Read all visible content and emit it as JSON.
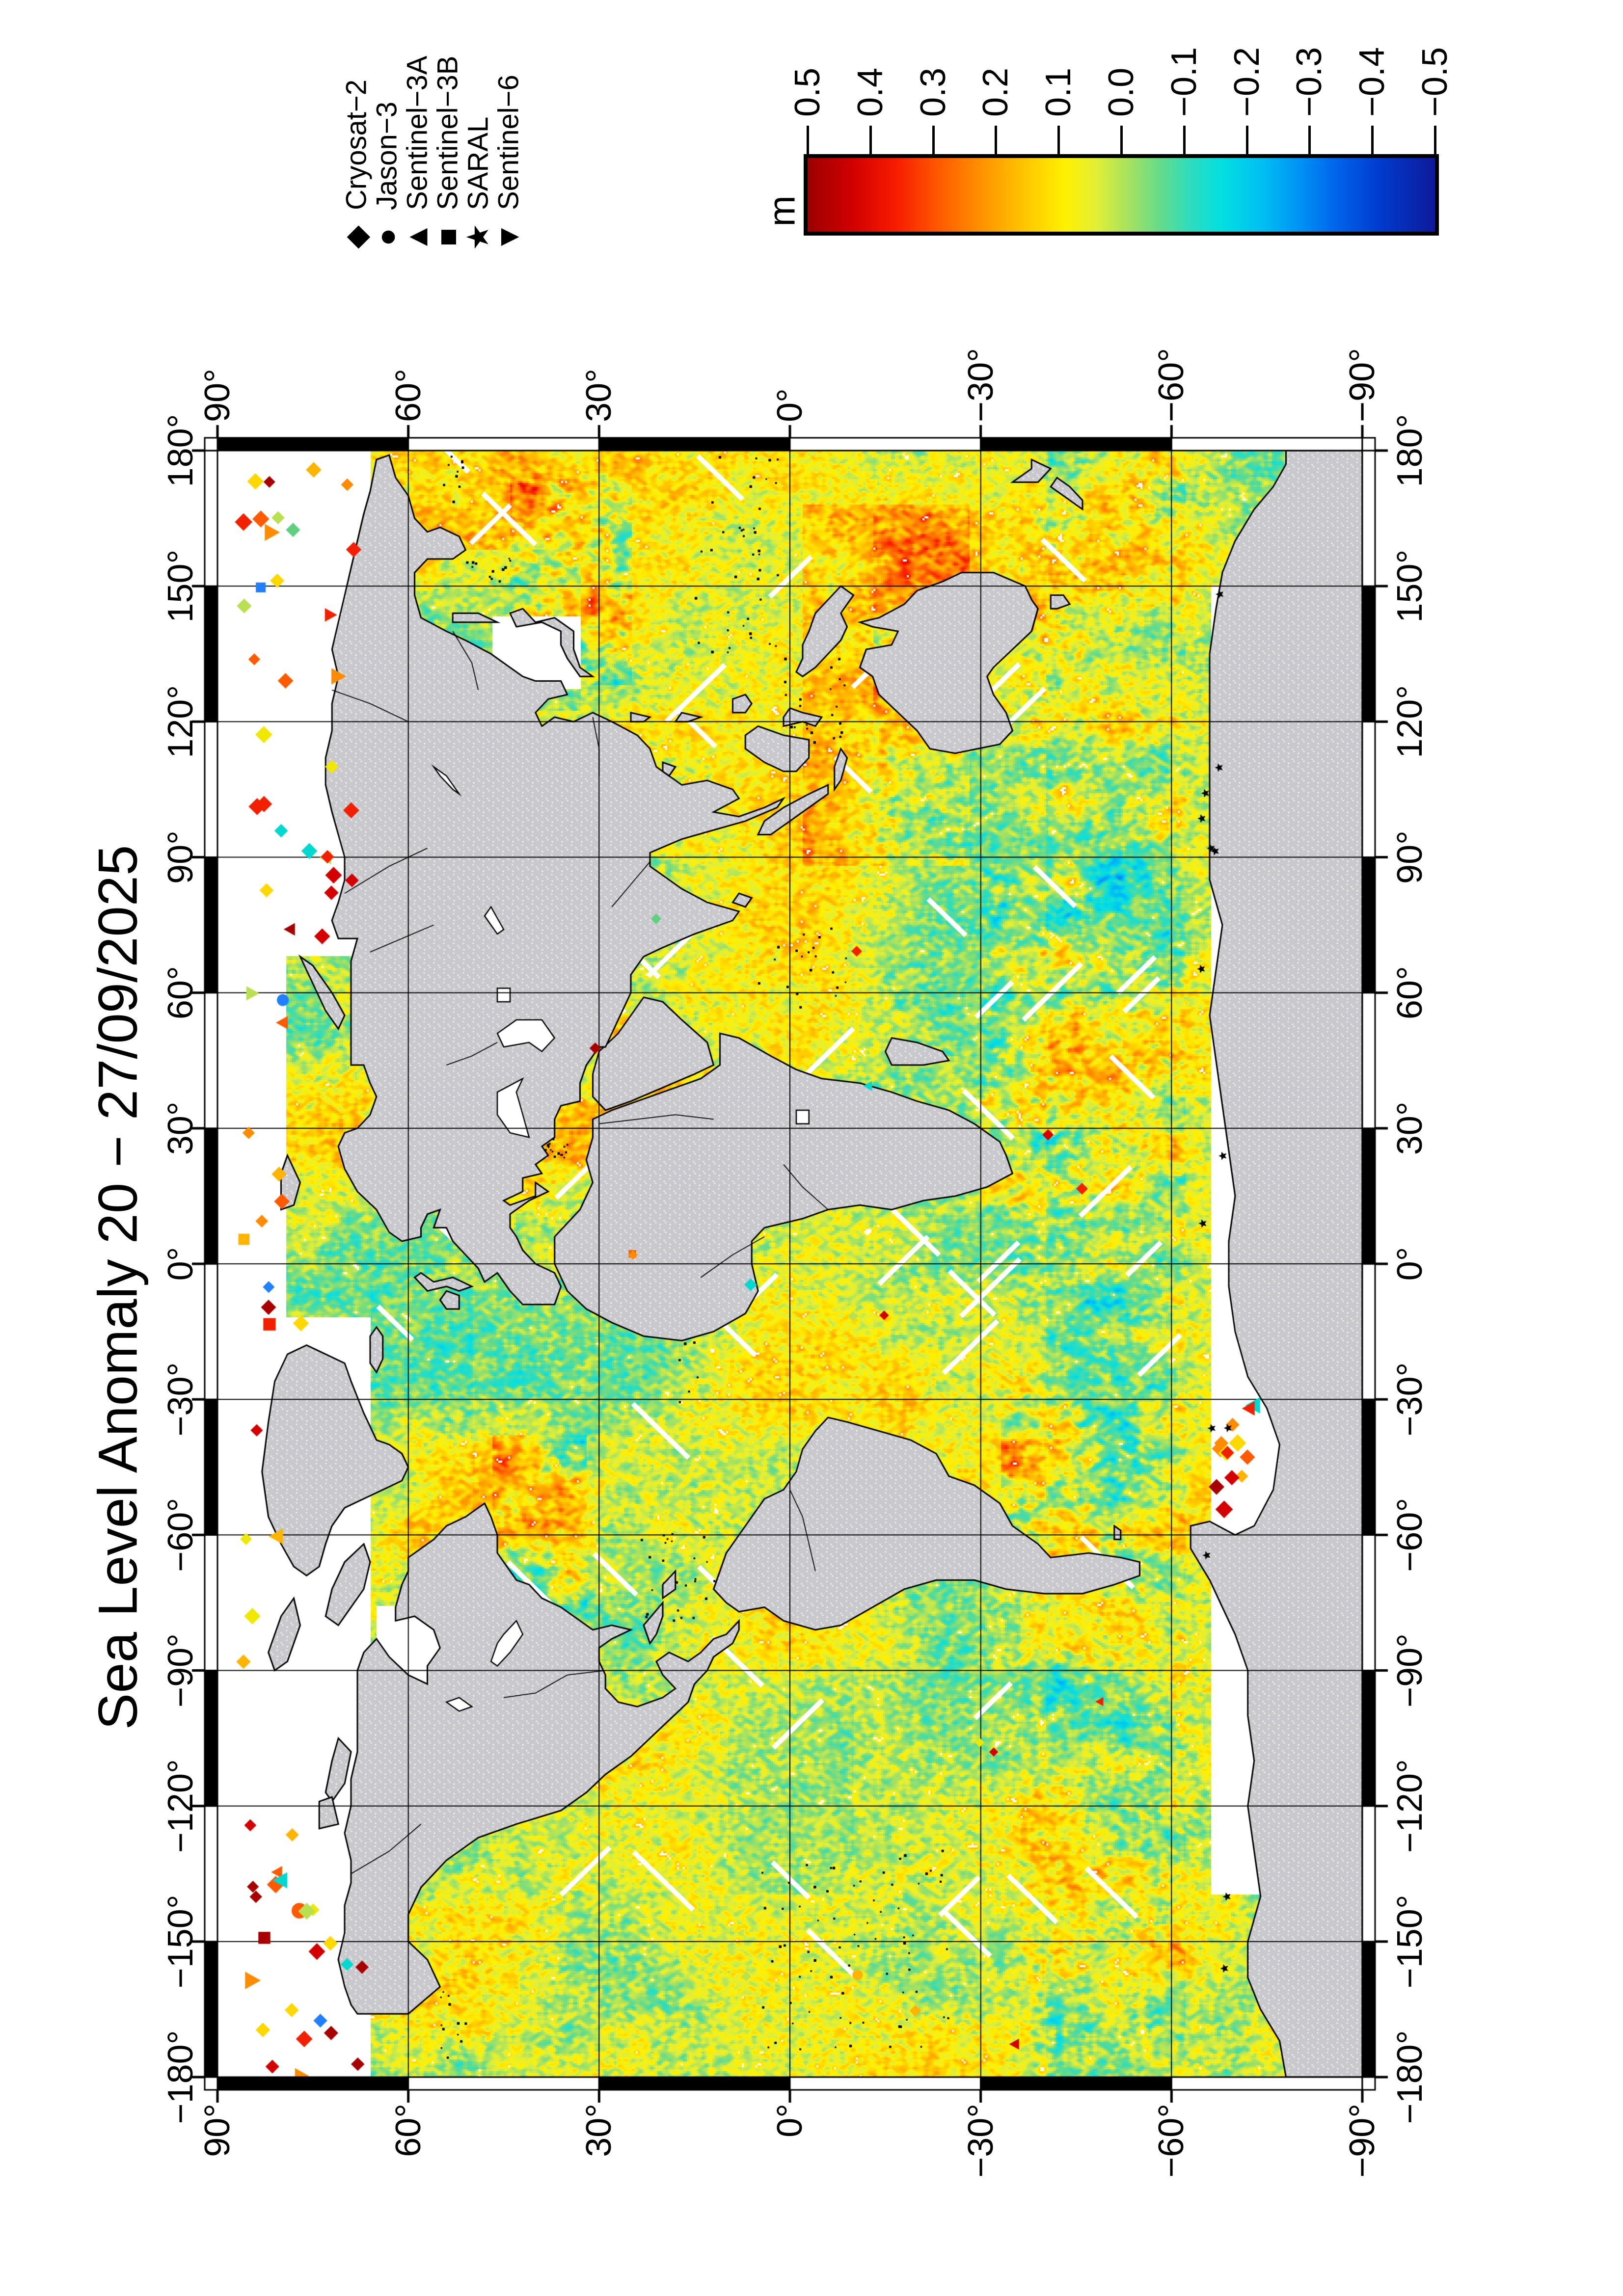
{
  "title": "Sea Level Anomaly 20 − 27/09/2025",
  "axes": {
    "lon_ticks": [
      {
        "deg": -180,
        "label": "−180°"
      },
      {
        "deg": -150,
        "label": "−150°"
      },
      {
        "deg": -120,
        "label": "−120°"
      },
      {
        "deg": -90,
        "label": "−90°"
      },
      {
        "deg": -60,
        "label": "−60°"
      },
      {
        "deg": -30,
        "label": "−30°"
      },
      {
        "deg": 0,
        "label": "0°"
      },
      {
        "deg": 30,
        "label": "30°"
      },
      {
        "deg": 60,
        "label": "60°"
      },
      {
        "deg": 90,
        "label": "90°"
      },
      {
        "deg": 120,
        "label": "120°"
      },
      {
        "deg": 150,
        "label": "150°"
      },
      {
        "deg": 180,
        "label": "180°"
      }
    ],
    "lat_ticks": [
      {
        "deg": 90,
        "label": "90°"
      },
      {
        "deg": 60,
        "label": "60°"
      },
      {
        "deg": 30,
        "label": "30°"
      },
      {
        "deg": 0,
        "label": "0°"
      },
      {
        "deg": -30,
        "label": "−30°"
      },
      {
        "deg": -60,
        "label": "−60°"
      },
      {
        "deg": -90,
        "label": "−90°"
      }
    ],
    "graticule_interval_deg": 30
  },
  "legend": {
    "entries": [
      {
        "label": "Cryosat−2",
        "symbol": "diamond",
        "glyph": "◆"
      },
      {
        "label": "Jason−3",
        "symbol": "circle",
        "glyph": "●"
      },
      {
        "label": "Sentinel−3A",
        "symbol": "triangle-up",
        "glyph": "▲"
      },
      {
        "label": "Sentinel−3B",
        "symbol": "square",
        "glyph": "■"
      },
      {
        "label": "SARAL",
        "symbol": "star",
        "glyph": "★"
      },
      {
        "label": "Sentinel−6",
        "symbol": "triangle-down",
        "glyph": "▼"
      }
    ]
  },
  "colorbar": {
    "unit": "m",
    "max": 0.5,
    "min": -0.5,
    "tick_step": 0.1,
    "ticks": [
      "0.5",
      "0.4",
      "0.3",
      "0.2",
      "0.1",
      "0.0",
      "−0.1",
      "−0.2",
      "−0.3",
      "−0.4",
      "−0.5"
    ],
    "stops": [
      [
        0,
        "#9c0000"
      ],
      [
        0.07,
        "#d00000"
      ],
      [
        0.14,
        "#f71b00"
      ],
      [
        0.21,
        "#ff5a00"
      ],
      [
        0.28,
        "#ff9400"
      ],
      [
        0.35,
        "#ffc800"
      ],
      [
        0.41,
        "#fff000"
      ],
      [
        0.46,
        "#e2ef36"
      ],
      [
        0.51,
        "#a8e25e"
      ],
      [
        0.56,
        "#67db88"
      ],
      [
        0.61,
        "#2edcbd"
      ],
      [
        0.66,
        "#04dfe0"
      ],
      [
        0.72,
        "#00c2f2"
      ],
      [
        0.78,
        "#0096f5"
      ],
      [
        0.84,
        "#0066ec"
      ],
      [
        0.91,
        "#003cd0"
      ],
      [
        1,
        "#0e1a9a"
      ]
    ],
    "land_color": "#c9c8cc",
    "no_data_color": "#ffffff"
  },
  "chart_data": {
    "type": "heatmap",
    "title": "Sea Level Anomaly 20 − 27/09/2025",
    "variable": "sea level anomaly",
    "units": "m",
    "date_range": "20 − 27/09/2025",
    "value_range": [
      -0.5,
      0.5
    ],
    "colorbar_ticks": [
      0.5,
      0.4,
      0.3,
      0.2,
      0.1,
      0.0,
      -0.1,
      -0.2,
      -0.3,
      -0.4,
      -0.5
    ],
    "x": {
      "label": "longitude",
      "range": [
        -180,
        180
      ],
      "tick_interval": 30
    },
    "y": {
      "label": "latitude",
      "range": [
        -90,
        90
      ],
      "tick_interval": 30
    },
    "orientation": "figure rotated 90° counter-clockwise on the page (portrait print layout)",
    "legend_satellites": [
      "Cryosat−2",
      "Jason−3",
      "Sentinel−3A",
      "Sentinel−3B",
      "SARAL",
      "Sentinel−6"
    ],
    "legend_symbols": [
      "diamond",
      "circle",
      "triangle-up",
      "square",
      "star",
      "triangle-down"
    ],
    "frame": "fancy checkered black/white border, 30° segments, labels on all four sides",
    "features": [
      "broad yellow-green field of weak positive anomalies (0 to +0.15 m) over most ocean basins",
      "energetic red/blue mesoscale eddy streaks (±0.3 to ±0.5 m) in Kuroshio, Gulf Stream, Agulhas, Brazil−Malvinas confluence and Antarctic Circumpolar Current",
      "elevated positive anomalies around Indonesia / NW Australia, Mediterranean and Red Sea",
      "cyan-to-blue negative patches (−0.1 to −0.3 m) in subpolar North Pacific, Sea of Okhotsk, eastern equatorial Pacific and Southern Ocean",
      "white = no gridded data: Arctic Ocean, Sea of Japan gap, Hudson Bay, Weddell Sea and a band around Antarctica",
      "isolated colored point observations (diamonds, squares, triangles) plotted in the polar no-data zones; small black SARAL stars along the Antarctic ice edge",
      "land masses gray with stippled texture, black coastlines, lakes and major rivers drawn"
    ]
  }
}
